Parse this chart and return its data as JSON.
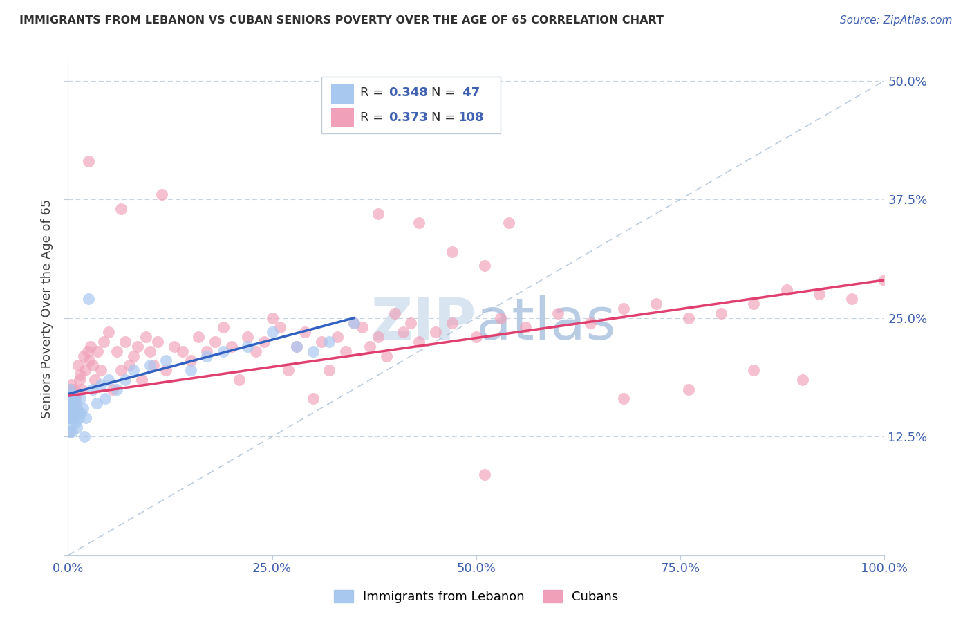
{
  "title": "IMMIGRANTS FROM LEBANON VS CUBAN SENIORS POVERTY OVER THE AGE OF 65 CORRELATION CHART",
  "source": "Source: ZipAtlas.com",
  "ylabel": "Seniors Poverty Over the Age of 65",
  "color_lebanon": "#a8c8f0",
  "color_cuba": "#f0a0b8",
  "color_lebanon_line": "#3060c0",
  "color_cuba_line": "#e04070",
  "color_diag": "#a0b8d0",
  "title_color": "#303030",
  "source_color": "#4060b0",
  "tick_color": "#4060b0",
  "grid_color": "#c8d4e0",
  "watermark_color": "#d8e4f0",
  "legend_box_color": "#c0ccd8",
  "ylabel_color": "#404040"
}
